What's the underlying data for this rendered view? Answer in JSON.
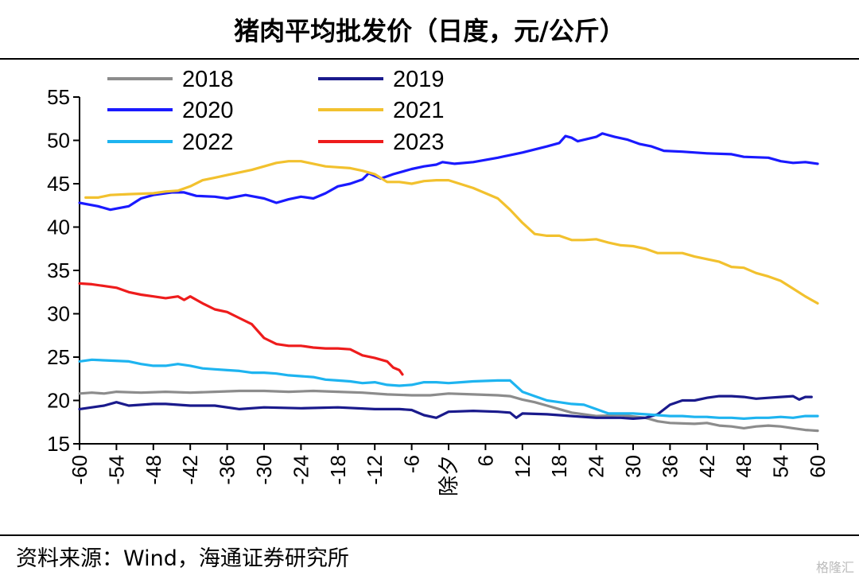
{
  "header": {
    "title": "猪肉平均批发价（日度，元/公斤）"
  },
  "footer": {
    "source": "资料来源：Wind，海通证券研究所",
    "watermark": "格隆汇"
  },
  "chart_data": {
    "type": "line",
    "title": "猪肉平均批发价（日度，元/公斤）",
    "xlabel": "",
    "ylabel": "",
    "ylim": [
      15,
      55
    ],
    "xlim": [
      -60,
      60
    ],
    "yticks": [
      15,
      20,
      25,
      30,
      35,
      40,
      45,
      50,
      55
    ],
    "xticks": [
      "-60",
      "-54",
      "-48",
      "-42",
      "-36",
      "-30",
      "-24",
      "-18",
      "-12",
      "-6",
      "除夕",
      "6",
      "12",
      "18",
      "24",
      "30",
      "36",
      "42",
      "48",
      "54",
      "60"
    ],
    "legend_position": "top",
    "grid": false,
    "series": [
      {
        "name": "2018",
        "color": "#8c8c8c",
        "values": [
          [
            -60,
            20.8
          ],
          [
            -58,
            20.9
          ],
          [
            -56,
            20.8
          ],
          [
            -54,
            21.0
          ],
          [
            -50,
            20.9
          ],
          [
            -46,
            21.0
          ],
          [
            -42,
            20.9
          ],
          [
            -38,
            21.0
          ],
          [
            -34,
            21.1
          ],
          [
            -30,
            21.1
          ],
          [
            -26,
            21.0
          ],
          [
            -22,
            21.1
          ],
          [
            -18,
            21.0
          ],
          [
            -14,
            20.9
          ],
          [
            -10,
            20.7
          ],
          [
            -6,
            20.6
          ],
          [
            -3,
            20.6
          ],
          [
            0,
            20.8
          ],
          [
            4,
            20.7
          ],
          [
            8,
            20.6
          ],
          [
            10,
            20.5
          ],
          [
            12,
            20.1
          ],
          [
            14,
            19.8
          ],
          [
            16,
            19.4
          ],
          [
            18,
            19.0
          ],
          [
            20,
            18.6
          ],
          [
            24,
            18.2
          ],
          [
            28,
            18.3
          ],
          [
            32,
            18.0
          ],
          [
            34,
            17.6
          ],
          [
            36,
            17.4
          ],
          [
            40,
            17.3
          ],
          [
            42,
            17.4
          ],
          [
            44,
            17.1
          ],
          [
            46,
            17.0
          ],
          [
            48,
            16.8
          ],
          [
            50,
            17.0
          ],
          [
            52,
            17.1
          ],
          [
            54,
            17.0
          ],
          [
            56,
            16.8
          ],
          [
            58,
            16.6
          ],
          [
            60,
            16.5
          ]
        ]
      },
      {
        "name": "2019",
        "color": "#1a1a8c",
        "values": [
          [
            -60,
            19.0
          ],
          [
            -58,
            19.2
          ],
          [
            -56,
            19.4
          ],
          [
            -54,
            19.8
          ],
          [
            -52,
            19.4
          ],
          [
            -48,
            19.6
          ],
          [
            -46,
            19.6
          ],
          [
            -42,
            19.4
          ],
          [
            -38,
            19.4
          ],
          [
            -34,
            19.0
          ],
          [
            -30,
            19.2
          ],
          [
            -24,
            19.1
          ],
          [
            -18,
            19.2
          ],
          [
            -12,
            19.0
          ],
          [
            -8,
            19.0
          ],
          [
            -6,
            18.9
          ],
          [
            -4,
            18.3
          ],
          [
            -2,
            18.0
          ],
          [
            0,
            18.7
          ],
          [
            4,
            18.8
          ],
          [
            8,
            18.7
          ],
          [
            10,
            18.6
          ],
          [
            11,
            18.0
          ],
          [
            12,
            18.5
          ],
          [
            16,
            18.4
          ],
          [
            20,
            18.2
          ],
          [
            24,
            18.0
          ],
          [
            28,
            18.0
          ],
          [
            30,
            17.9
          ],
          [
            32,
            18.0
          ],
          [
            34,
            18.4
          ],
          [
            36,
            19.5
          ],
          [
            38,
            20.0
          ],
          [
            40,
            20.0
          ],
          [
            42,
            20.3
          ],
          [
            44,
            20.5
          ],
          [
            46,
            20.5
          ],
          [
            48,
            20.4
          ],
          [
            50,
            20.2
          ],
          [
            52,
            20.3
          ],
          [
            54,
            20.4
          ],
          [
            56,
            20.5
          ],
          [
            57,
            20.1
          ],
          [
            58,
            20.4
          ],
          [
            59,
            20.4
          ]
        ]
      },
      {
        "name": "2020",
        "color": "#1a1aff",
        "values": [
          [
            -60,
            42.8
          ],
          [
            -57,
            42.4
          ],
          [
            -55,
            42.0
          ],
          [
            -52,
            42.4
          ],
          [
            -50,
            43.3
          ],
          [
            -48,
            43.7
          ],
          [
            -45,
            44.0
          ],
          [
            -43,
            44.0
          ],
          [
            -41,
            43.6
          ],
          [
            -38,
            43.5
          ],
          [
            -36,
            43.3
          ],
          [
            -33,
            43.7
          ],
          [
            -30,
            43.3
          ],
          [
            -28,
            42.8
          ],
          [
            -26,
            43.2
          ],
          [
            -24,
            43.5
          ],
          [
            -22,
            43.3
          ],
          [
            -20,
            43.9
          ],
          [
            -18,
            44.7
          ],
          [
            -16,
            45.0
          ],
          [
            -14,
            45.5
          ],
          [
            -13,
            46.2
          ],
          [
            -11,
            45.6
          ],
          [
            -9,
            46.1
          ],
          [
            -6,
            46.7
          ],
          [
            -4,
            47.0
          ],
          [
            -2,
            47.2
          ],
          [
            -1,
            47.5
          ],
          [
            1,
            47.3
          ],
          [
            4,
            47.5
          ],
          [
            8,
            48.0
          ],
          [
            12,
            48.6
          ],
          [
            16,
            49.3
          ],
          [
            18,
            49.7
          ],
          [
            19,
            50.5
          ],
          [
            20,
            50.3
          ],
          [
            21,
            49.9
          ],
          [
            24,
            50.4
          ],
          [
            25,
            50.8
          ],
          [
            27,
            50.4
          ],
          [
            29,
            50.1
          ],
          [
            31,
            49.6
          ],
          [
            33,
            49.3
          ],
          [
            35,
            48.8
          ],
          [
            38,
            48.7
          ],
          [
            42,
            48.5
          ],
          [
            46,
            48.4
          ],
          [
            48,
            48.1
          ],
          [
            52,
            48.0
          ],
          [
            54,
            47.6
          ],
          [
            56,
            47.4
          ],
          [
            58,
            47.5
          ],
          [
            60,
            47.3
          ]
        ]
      },
      {
        "name": "2021",
        "color": "#f2c12e",
        "values": [
          [
            -59,
            43.4
          ],
          [
            -57,
            43.4
          ],
          [
            -55,
            43.7
          ],
          [
            -52,
            43.8
          ],
          [
            -48,
            43.9
          ],
          [
            -46,
            44.1
          ],
          [
            -44,
            44.2
          ],
          [
            -42,
            44.7
          ],
          [
            -40,
            45.4
          ],
          [
            -38,
            45.7
          ],
          [
            -36,
            46.0
          ],
          [
            -34,
            46.3
          ],
          [
            -32,
            46.6
          ],
          [
            -30,
            47.0
          ],
          [
            -28,
            47.4
          ],
          [
            -26,
            47.6
          ],
          [
            -24,
            47.6
          ],
          [
            -22,
            47.3
          ],
          [
            -20,
            47.0
          ],
          [
            -18,
            46.9
          ],
          [
            -16,
            46.8
          ],
          [
            -14,
            46.5
          ],
          [
            -12,
            46.1
          ],
          [
            -10,
            45.2
          ],
          [
            -8,
            45.2
          ],
          [
            -6,
            45.0
          ],
          [
            -4,
            45.3
          ],
          [
            -2,
            45.4
          ],
          [
            0,
            45.4
          ],
          [
            4,
            44.5
          ],
          [
            8,
            43.3
          ],
          [
            10,
            42.0
          ],
          [
            12,
            40.5
          ],
          [
            14,
            39.2
          ],
          [
            16,
            39.0
          ],
          [
            18,
            39.0
          ],
          [
            20,
            38.5
          ],
          [
            22,
            38.5
          ],
          [
            24,
            38.6
          ],
          [
            26,
            38.2
          ],
          [
            28,
            37.9
          ],
          [
            30,
            37.8
          ],
          [
            32,
            37.5
          ],
          [
            34,
            37.0
          ],
          [
            36,
            37.0
          ],
          [
            38,
            37.0
          ],
          [
            40,
            36.6
          ],
          [
            42,
            36.3
          ],
          [
            44,
            36.0
          ],
          [
            46,
            35.4
          ],
          [
            48,
            35.3
          ],
          [
            50,
            34.7
          ],
          [
            52,
            34.3
          ],
          [
            54,
            33.8
          ],
          [
            56,
            32.9
          ],
          [
            58,
            32.0
          ],
          [
            60,
            31.2
          ]
        ]
      },
      {
        "name": "2022",
        "color": "#1eb4f0",
        "values": [
          [
            -60,
            24.5
          ],
          [
            -58,
            24.7
          ],
          [
            -55,
            24.6
          ],
          [
            -52,
            24.5
          ],
          [
            -50,
            24.2
          ],
          [
            -48,
            24.0
          ],
          [
            -46,
            24.0
          ],
          [
            -44,
            24.2
          ],
          [
            -42,
            24.0
          ],
          [
            -40,
            23.7
          ],
          [
            -38,
            23.6
          ],
          [
            -36,
            23.5
          ],
          [
            -34,
            23.4
          ],
          [
            -32,
            23.2
          ],
          [
            -30,
            23.2
          ],
          [
            -28,
            23.1
          ],
          [
            -26,
            22.9
          ],
          [
            -24,
            22.8
          ],
          [
            -22,
            22.7
          ],
          [
            -20,
            22.4
          ],
          [
            -18,
            22.3
          ],
          [
            -16,
            22.2
          ],
          [
            -14,
            22.0
          ],
          [
            -12,
            22.1
          ],
          [
            -10,
            21.8
          ],
          [
            -8,
            21.7
          ],
          [
            -6,
            21.8
          ],
          [
            -4,
            22.1
          ],
          [
            -2,
            22.1
          ],
          [
            0,
            22.0
          ],
          [
            2,
            22.1
          ],
          [
            4,
            22.2
          ],
          [
            8,
            22.3
          ],
          [
            10,
            22.3
          ],
          [
            12,
            21.0
          ],
          [
            14,
            20.5
          ],
          [
            16,
            20.0
          ],
          [
            18,
            19.8
          ],
          [
            20,
            19.6
          ],
          [
            22,
            19.5
          ],
          [
            24,
            19.0
          ],
          [
            26,
            18.5
          ],
          [
            28,
            18.5
          ],
          [
            30,
            18.5
          ],
          [
            32,
            18.4
          ],
          [
            34,
            18.3
          ],
          [
            36,
            18.2
          ],
          [
            38,
            18.2
          ],
          [
            40,
            18.1
          ],
          [
            42,
            18.1
          ],
          [
            44,
            18.0
          ],
          [
            46,
            18.0
          ],
          [
            48,
            17.9
          ],
          [
            50,
            18.0
          ],
          [
            52,
            18.0
          ],
          [
            54,
            18.1
          ],
          [
            56,
            18.0
          ],
          [
            58,
            18.2
          ],
          [
            60,
            18.2
          ]
        ]
      },
      {
        "name": "2023",
        "color": "#ee1c1c",
        "values": [
          [
            -60,
            33.5
          ],
          [
            -58,
            33.4
          ],
          [
            -56,
            33.2
          ],
          [
            -54,
            33.0
          ],
          [
            -52,
            32.5
          ],
          [
            -50,
            32.2
          ],
          [
            -48,
            32.0
          ],
          [
            -46,
            31.8
          ],
          [
            -44,
            32.0
          ],
          [
            -43,
            31.6
          ],
          [
            -42,
            32.0
          ],
          [
            -40,
            31.2
          ],
          [
            -38,
            30.5
          ],
          [
            -36,
            30.2
          ],
          [
            -34,
            29.5
          ],
          [
            -32,
            28.8
          ],
          [
            -30,
            27.2
          ],
          [
            -28,
            26.5
          ],
          [
            -26,
            26.3
          ],
          [
            -24,
            26.3
          ],
          [
            -22,
            26.1
          ],
          [
            -20,
            26.0
          ],
          [
            -18,
            26.0
          ],
          [
            -16,
            25.9
          ],
          [
            -14,
            25.2
          ],
          [
            -12,
            24.9
          ],
          [
            -10,
            24.5
          ],
          [
            -9,
            23.8
          ],
          [
            -8,
            23.5
          ],
          [
            -7.5,
            23.0
          ]
        ]
      }
    ]
  }
}
